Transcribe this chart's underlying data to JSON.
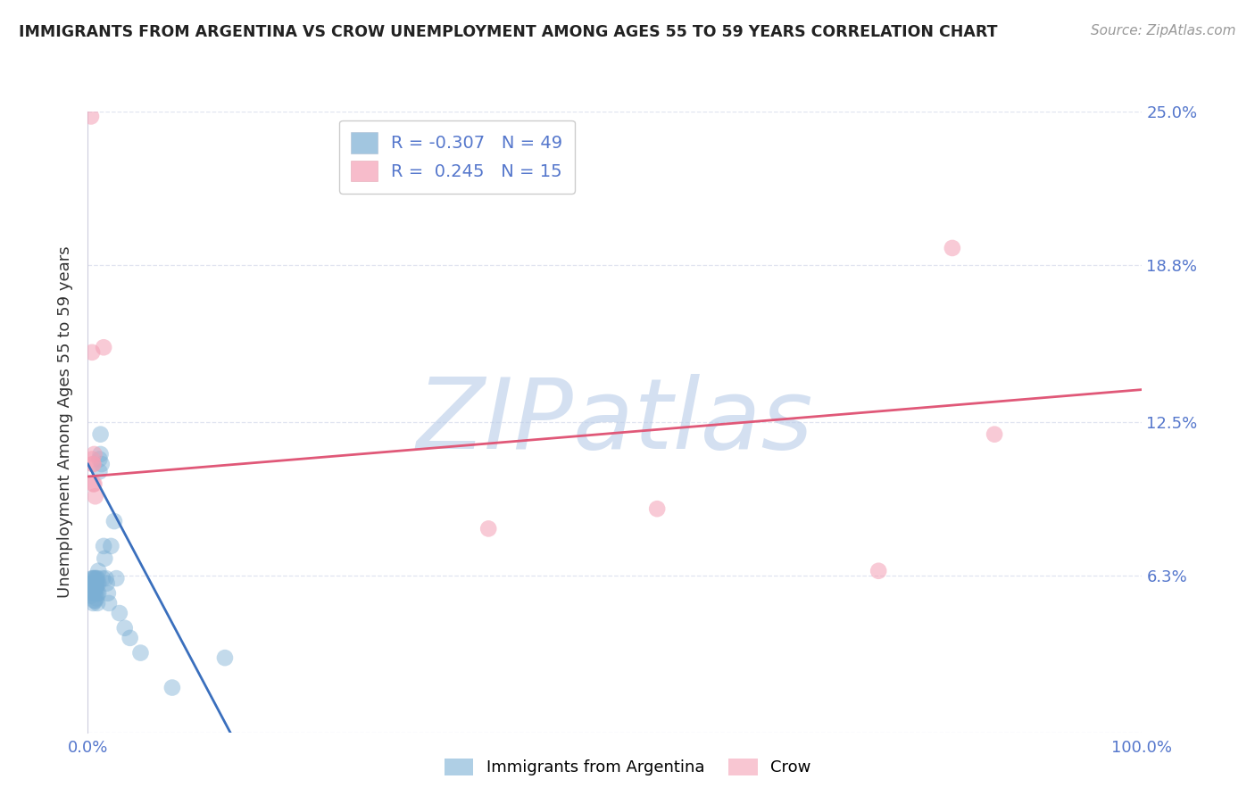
{
  "title": "IMMIGRANTS FROM ARGENTINA VS CROW UNEMPLOYMENT AMONG AGES 55 TO 59 YEARS CORRELATION CHART",
  "source": "Source: ZipAtlas.com",
  "ylabel": "Unemployment Among Ages 55 to 59 years",
  "xlim": [
    0.0,
    1.0
  ],
  "ylim": [
    0.0,
    0.25
  ],
  "yticks": [
    0.0,
    0.063,
    0.125,
    0.188,
    0.25
  ],
  "ytick_labels": [
    "",
    "6.3%",
    "12.5%",
    "18.8%",
    "25.0%"
  ],
  "background_color": "#ffffff",
  "watermark": "ZIPatlas",
  "watermark_color": "#b8cce8",
  "legend_R1": "-0.307",
  "legend_N1": "49",
  "legend_R2": "0.245",
  "legend_N2": "15",
  "blue_color": "#7bafd4",
  "pink_color": "#f4a0b5",
  "blue_line_color": "#3a6fbd",
  "pink_line_color": "#e05878",
  "axis_label_color": "#5577cc",
  "grid_color": "#e0e4f0",
  "title_color": "#222222",
  "blue_dots_x": [
    0.002,
    0.003,
    0.003,
    0.004,
    0.004,
    0.005,
    0.005,
    0.005,
    0.005,
    0.006,
    0.006,
    0.006,
    0.007,
    0.007,
    0.007,
    0.007,
    0.007,
    0.008,
    0.008,
    0.008,
    0.008,
    0.009,
    0.009,
    0.009,
    0.009,
    0.01,
    0.01,
    0.01,
    0.011,
    0.011,
    0.012,
    0.012,
    0.013,
    0.014,
    0.015,
    0.016,
    0.017,
    0.018,
    0.019,
    0.02,
    0.022,
    0.025,
    0.027,
    0.03,
    0.035,
    0.04,
    0.05,
    0.08,
    0.13
  ],
  "blue_dots_y": [
    0.058,
    0.06,
    0.055,
    0.062,
    0.057,
    0.062,
    0.06,
    0.056,
    0.052,
    0.062,
    0.058,
    0.053,
    0.062,
    0.06,
    0.058,
    0.056,
    0.053,
    0.062,
    0.06,
    0.058,
    0.054,
    0.062,
    0.06,
    0.056,
    0.052,
    0.065,
    0.06,
    0.056,
    0.11,
    0.105,
    0.12,
    0.112,
    0.108,
    0.062,
    0.075,
    0.07,
    0.062,
    0.06,
    0.056,
    0.052,
    0.075,
    0.085,
    0.062,
    0.048,
    0.042,
    0.038,
    0.032,
    0.018,
    0.03
  ],
  "pink_dots_x": [
    0.003,
    0.004,
    0.004,
    0.005,
    0.005,
    0.006,
    0.006,
    0.007,
    0.015,
    0.38,
    0.54,
    0.75,
    0.82,
    0.86,
    0.005
  ],
  "pink_dots_y": [
    0.248,
    0.153,
    0.11,
    0.108,
    0.1,
    0.112,
    0.1,
    0.095,
    0.155,
    0.082,
    0.09,
    0.065,
    0.195,
    0.12,
    0.108
  ],
  "blue_line_x": [
    0.0,
    0.135
  ],
  "blue_line_y": [
    0.108,
    0.0
  ],
  "pink_line_x": [
    0.0,
    1.0
  ],
  "pink_line_y": [
    0.103,
    0.138
  ]
}
